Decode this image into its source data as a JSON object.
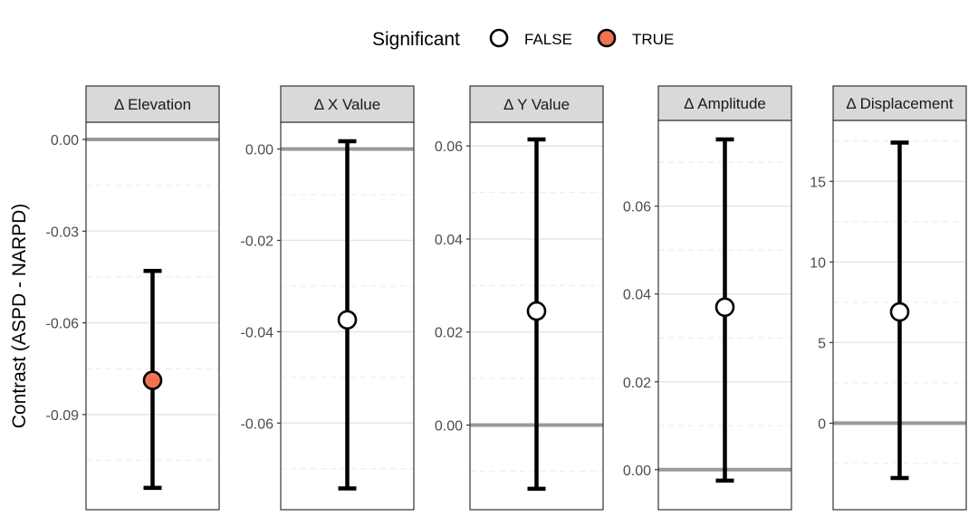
{
  "legend": {
    "title": "Significant",
    "items": [
      {
        "label": "FALSE",
        "fill": "#ffffff"
      },
      {
        "label": "TRUE",
        "fill": "#f07452"
      }
    ]
  },
  "y_axis_title": "Contrast (ASPD - NARPD)",
  "colors": {
    "point_false": "#ffffff",
    "point_true": "#f07452",
    "zero_line": "#999999",
    "grid_major": "#e6e6e6",
    "grid_minor": "#eeeeee",
    "strip_bg": "#d9d9d9",
    "errorbar": "#000000"
  },
  "chart_data": [
    {
      "type": "errorbar",
      "title": "Δ Elevation",
      "ylim": [
        -0.1155,
        0.0
      ],
      "ticks": [
        0.0,
        -0.03,
        -0.06,
        -0.09
      ],
      "tick_labels": [
        "0.00",
        "-0.03",
        "-0.06",
        "-0.09"
      ],
      "minor_ticks": [
        -0.015,
        -0.045,
        -0.075,
        -0.105
      ],
      "estimate": -0.0788,
      "lower": -0.114,
      "upper": -0.043,
      "significant": true
    },
    {
      "type": "errorbar",
      "title": "Δ X Value",
      "ylim": [
        -0.0752,
        0.0021
      ],
      "ticks": [
        0.0,
        -0.02,
        -0.04,
        -0.06
      ],
      "tick_labels": [
        "0.00",
        "-0.02",
        "-0.04",
        "-0.06"
      ],
      "minor_ticks": [
        -0.01,
        -0.03,
        -0.05,
        -0.07
      ],
      "estimate": -0.0374,
      "lower": -0.0743,
      "upper": 0.0017,
      "significant": false
    },
    {
      "type": "errorbar",
      "title": "Δ Y Value",
      "ylim": [
        -0.0145,
        0.0614
      ],
      "ticks": [
        0.0,
        0.02,
        0.04,
        0.06
      ],
      "tick_labels": [
        "0.00",
        "0.02",
        "0.04",
        "0.06"
      ],
      "minor_ticks": [
        -0.01,
        0.01,
        0.03,
        0.05
      ],
      "estimate": 0.0245,
      "lower": -0.0137,
      "upper": 0.0614,
      "significant": false
    },
    {
      "type": "errorbar",
      "title": "Δ Amplitude",
      "ylim": [
        -0.0052,
        0.0752
      ],
      "ticks": [
        0.0,
        0.02,
        0.04,
        0.06
      ],
      "tick_labels": [
        "0.00",
        "0.02",
        "0.04",
        "0.06"
      ],
      "minor_ticks": [
        0.01,
        0.03,
        0.05,
        0.07
      ],
      "estimate": 0.037,
      "lower": -0.0025,
      "upper": 0.0752,
      "significant": false
    },
    {
      "type": "errorbar",
      "title": "Δ Displacement",
      "ylim": [
        -4.3,
        17.6
      ],
      "ticks": [
        0,
        5,
        10,
        15
      ],
      "tick_labels": [
        "0",
        "5",
        "10",
        "15"
      ],
      "minor_ticks": [
        -2.5,
        2.5,
        7.5,
        12.5,
        17.5
      ],
      "estimate": 6.9,
      "lower": -3.4,
      "upper": 17.4,
      "significant": false
    }
  ]
}
